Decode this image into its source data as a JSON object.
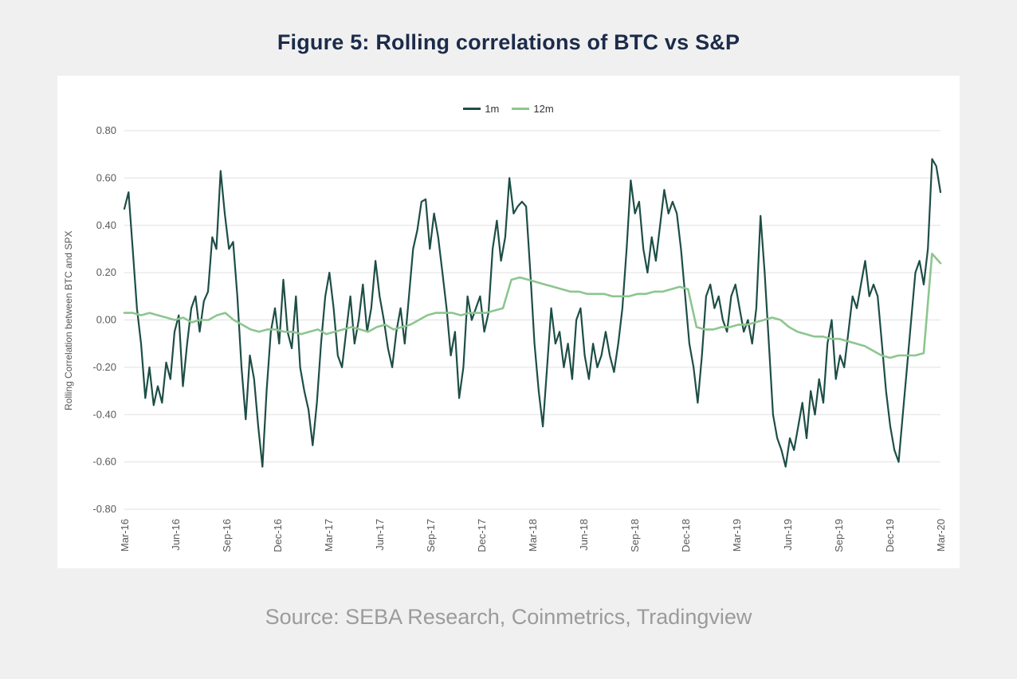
{
  "title": "Figure 5: Rolling correlations of BTC vs S&P",
  "source": "Source: SEBA Research, Coinmetrics, Tradingview",
  "chart_data": {
    "type": "line",
    "title": "Figure 5: Rolling correlations of BTC vs S&P",
    "xlabel": "",
    "ylabel": "Rolling Correlation between BTC and SPX",
    "ylim": [
      -0.8,
      0.8
    ],
    "ytick_step": 0.2,
    "yticks": [
      "0.80",
      "0.60",
      "0.40",
      "0.20",
      "0.00",
      "-0.20",
      "-0.40",
      "-0.60",
      "-0.80"
    ],
    "grid": true,
    "legend_position": "top-center",
    "categories": [
      "Mar-16",
      "Jun-16",
      "Sep-16",
      "Dec-16",
      "Mar-17",
      "Jun-17",
      "Sep-17",
      "Dec-17",
      "Mar-18",
      "Jun-18",
      "Sep-18",
      "Dec-18",
      "Mar-19",
      "Jun-19",
      "Sep-19",
      "Dec-19",
      "Mar-20"
    ],
    "series": [
      {
        "name": "1m",
        "color": "#1d4e46",
        "stroke_width": 2.2,
        "values": [
          0.47,
          0.54,
          0.3,
          0.05,
          -0.1,
          -0.33,
          -0.2,
          -0.36,
          -0.28,
          -0.35,
          -0.18,
          -0.25,
          -0.05,
          0.02,
          -0.28,
          -0.1,
          0.05,
          0.1,
          -0.05,
          0.08,
          0.12,
          0.35,
          0.3,
          0.63,
          0.45,
          0.3,
          0.33,
          0.1,
          -0.2,
          -0.42,
          -0.15,
          -0.25,
          -0.45,
          -0.62,
          -0.3,
          -0.05,
          0.05,
          -0.1,
          0.17,
          -0.05,
          -0.12,
          0.1,
          -0.2,
          -0.3,
          -0.38,
          -0.53,
          -0.35,
          -0.1,
          0.1,
          0.2,
          0.05,
          -0.15,
          -0.2,
          -0.05,
          0.1,
          -0.1,
          0.0,
          0.15,
          -0.05,
          0.05,
          0.25,
          0.1,
          0.0,
          -0.12,
          -0.2,
          -0.05,
          0.05,
          -0.1,
          0.1,
          0.3,
          0.38,
          0.5,
          0.51,
          0.3,
          0.45,
          0.35,
          0.2,
          0.05,
          -0.15,
          -0.05,
          -0.33,
          -0.2,
          0.1,
          0.0,
          0.05,
          0.1,
          -0.05,
          0.03,
          0.3,
          0.42,
          0.25,
          0.35,
          0.6,
          0.45,
          0.48,
          0.5,
          0.48,
          0.2,
          -0.1,
          -0.3,
          -0.45,
          -0.2,
          0.05,
          -0.1,
          -0.05,
          -0.2,
          -0.1,
          -0.25,
          0.0,
          0.05,
          -0.15,
          -0.25,
          -0.1,
          -0.2,
          -0.15,
          -0.05,
          -0.15,
          -0.22,
          -0.1,
          0.05,
          0.3,
          0.59,
          0.45,
          0.5,
          0.3,
          0.2,
          0.35,
          0.25,
          0.4,
          0.55,
          0.45,
          0.5,
          0.45,
          0.3,
          0.1,
          -0.1,
          -0.2,
          -0.35,
          -0.15,
          0.1,
          0.15,
          0.05,
          0.1,
          0.0,
          -0.05,
          0.1,
          0.15,
          0.05,
          -0.05,
          0.0,
          -0.1,
          0.05,
          0.44,
          0.2,
          -0.1,
          -0.4,
          -0.5,
          -0.55,
          -0.62,
          -0.5,
          -0.55,
          -0.45,
          -0.35,
          -0.5,
          -0.3,
          -0.4,
          -0.25,
          -0.35,
          -0.1,
          0.0,
          -0.25,
          -0.15,
          -0.2,
          -0.05,
          0.1,
          0.05,
          0.15,
          0.25,
          0.1,
          0.15,
          0.1,
          -0.1,
          -0.3,
          -0.45,
          -0.55,
          -0.6,
          -0.4,
          -0.2,
          0.0,
          0.2,
          0.25,
          0.15,
          0.3,
          0.68,
          0.65,
          0.54
        ]
      },
      {
        "name": "12m",
        "color": "#8cc68f",
        "stroke_width": 2.6,
        "values": [
          0.03,
          0.03,
          0.02,
          0.03,
          0.02,
          0.01,
          0.0,
          0.01,
          -0.01,
          0.0,
          0.0,
          0.02,
          0.03,
          0.0,
          -0.02,
          -0.04,
          -0.05,
          -0.04,
          -0.04,
          -0.05,
          -0.05,
          -0.06,
          -0.05,
          -0.04,
          -0.06,
          -0.05,
          -0.04,
          -0.03,
          -0.04,
          -0.05,
          -0.03,
          -0.02,
          -0.04,
          -0.03,
          -0.02,
          0.0,
          0.02,
          0.03,
          0.03,
          0.03,
          0.02,
          0.03,
          0.03,
          0.03,
          0.04,
          0.05,
          0.17,
          0.18,
          0.17,
          0.16,
          0.15,
          0.14,
          0.13,
          0.12,
          0.12,
          0.11,
          0.11,
          0.11,
          0.1,
          0.1,
          0.1,
          0.11,
          0.11,
          0.12,
          0.12,
          0.13,
          0.14,
          0.13,
          -0.03,
          -0.04,
          -0.04,
          -0.03,
          -0.03,
          -0.02,
          -0.02,
          -0.01,
          0.0,
          0.01,
          0.0,
          -0.03,
          -0.05,
          -0.06,
          -0.07,
          -0.07,
          -0.08,
          -0.08,
          -0.09,
          -0.1,
          -0.11,
          -0.13,
          -0.15,
          -0.16,
          -0.15,
          -0.15,
          -0.15,
          -0.14,
          0.28,
          0.24
        ]
      }
    ]
  }
}
